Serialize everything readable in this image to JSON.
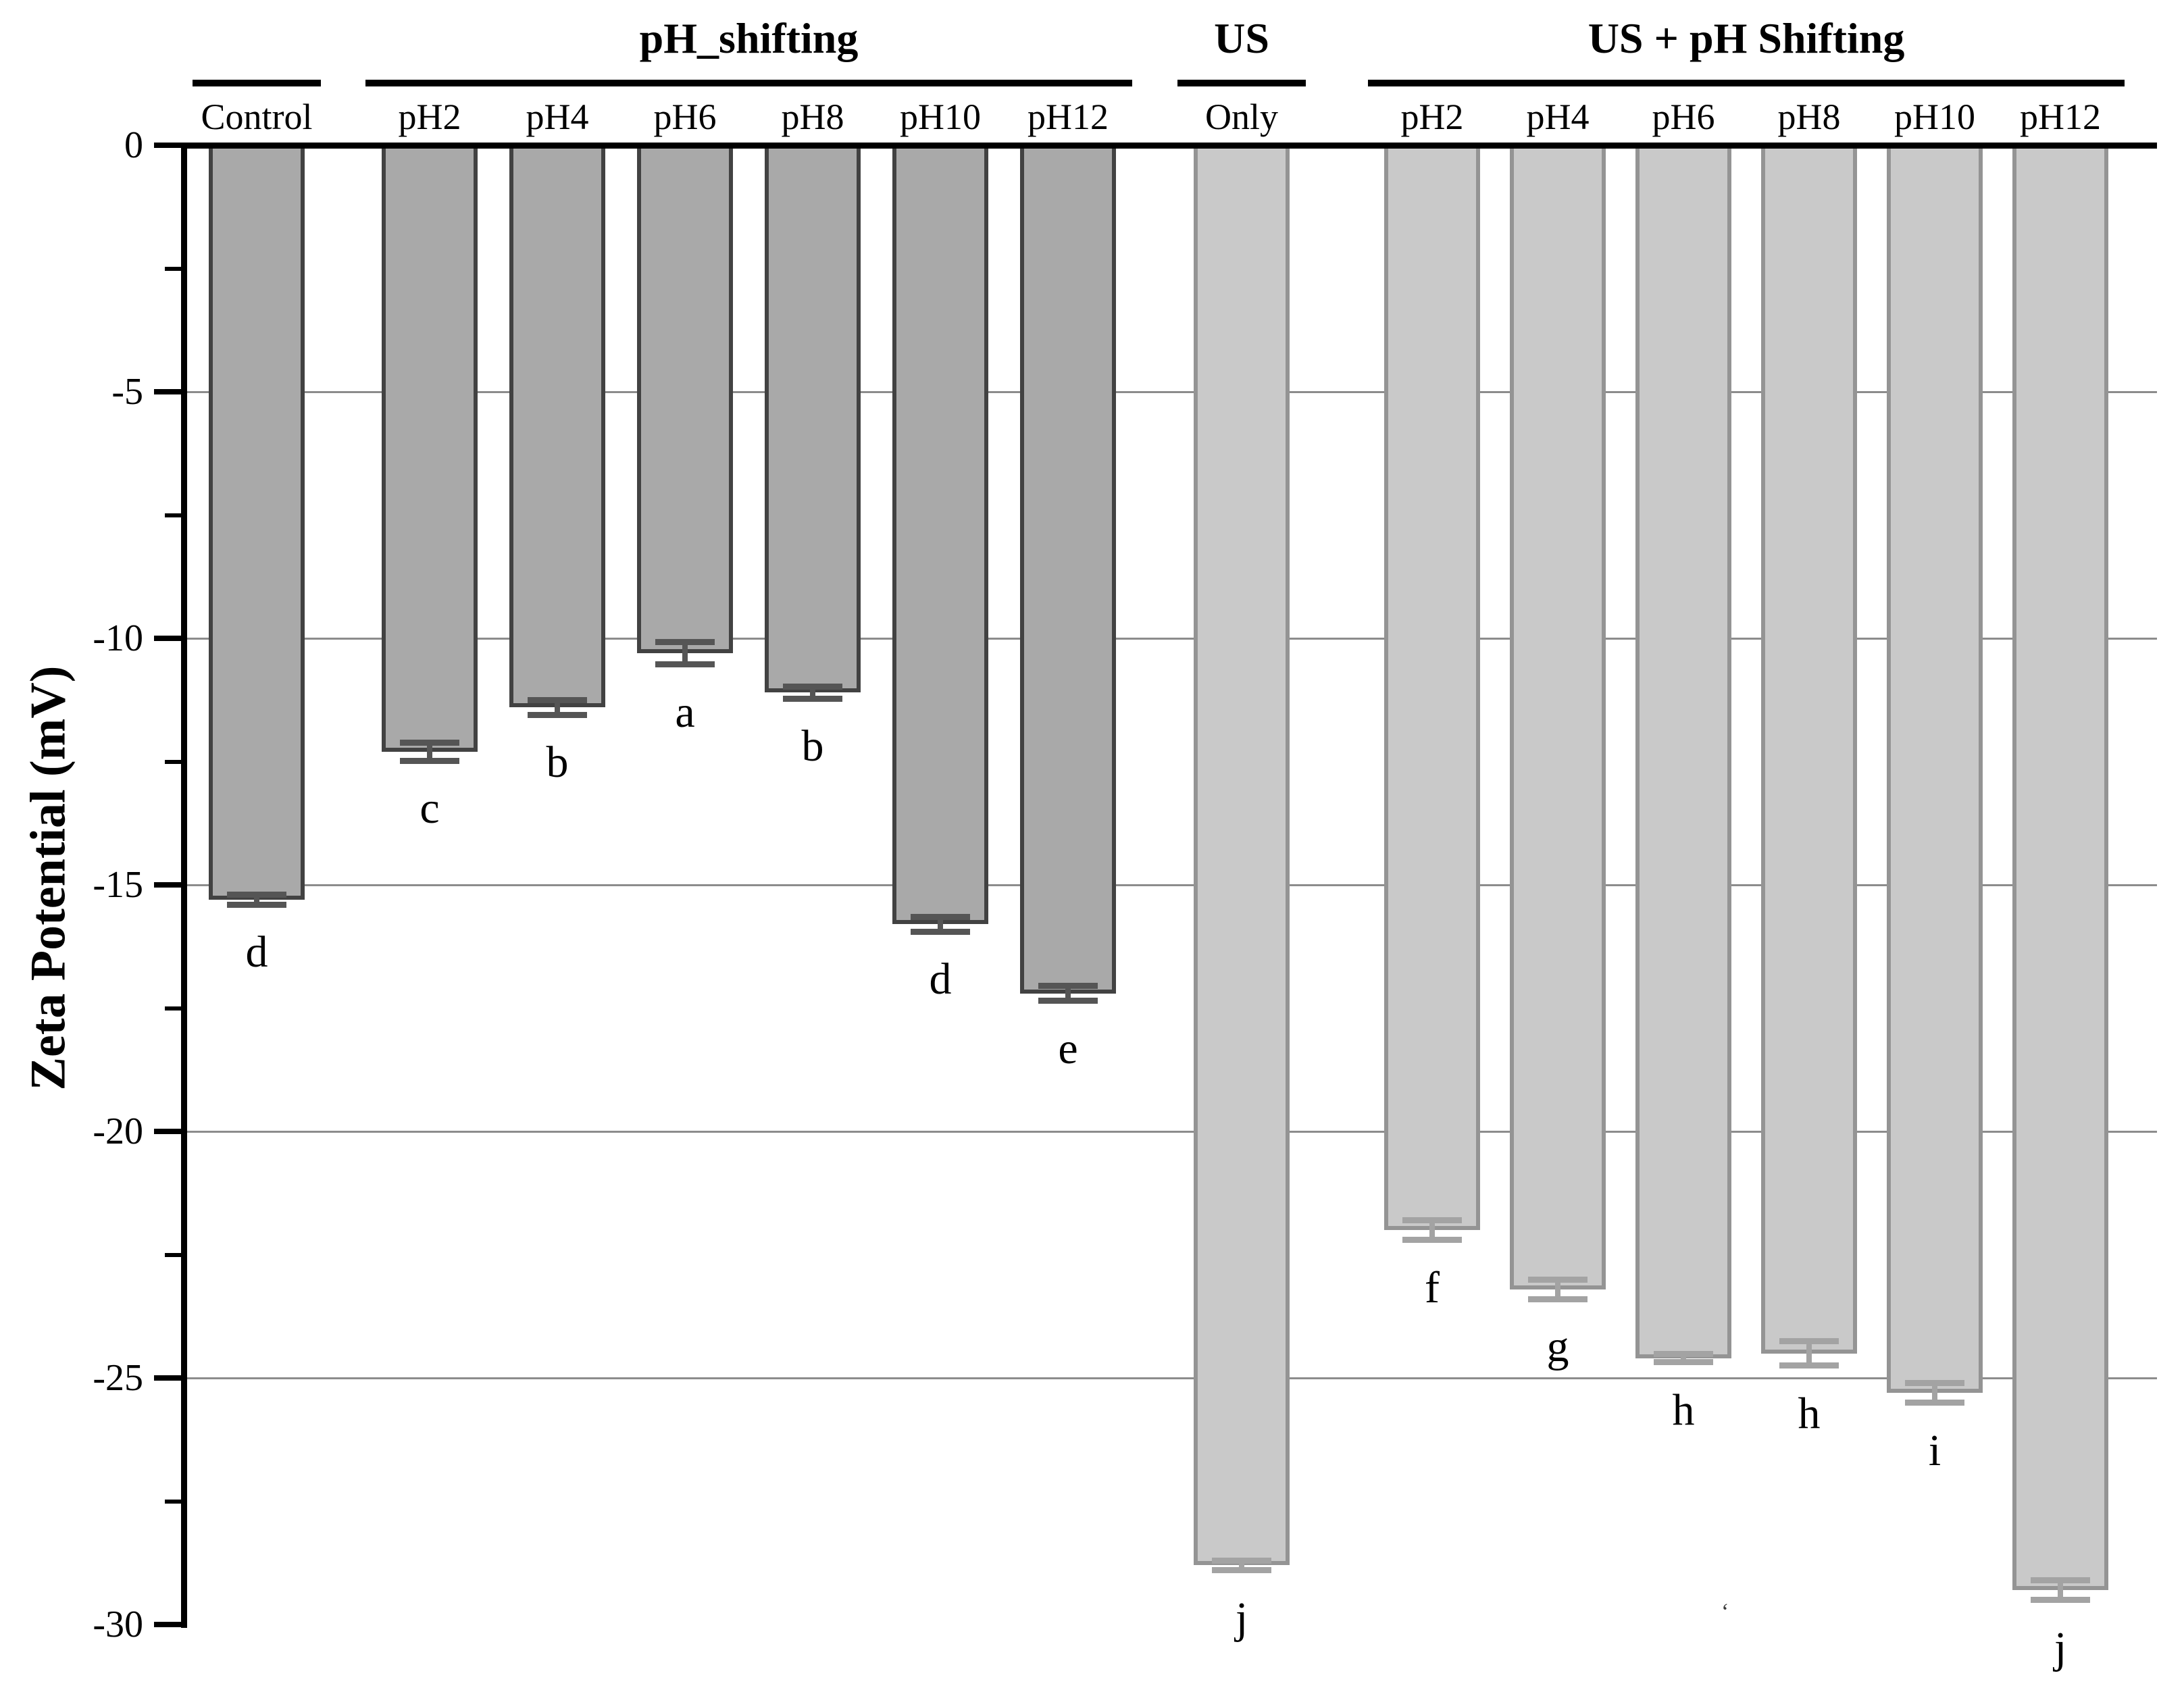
{
  "chart_data": {
    "type": "bar",
    "title": "",
    "ylabel": "Zeta Potential (mV)",
    "xlabel": "",
    "ylim": [
      -30,
      0
    ],
    "grid": true,
    "legend": "none",
    "unit": "mV",
    "yticks": [
      {
        "value": 0,
        "label": "0"
      },
      {
        "value": -5,
        "label": "-5"
      },
      {
        "value": -10,
        "label": "-10"
      },
      {
        "value": -15,
        "label": "-15"
      },
      {
        "value": -20,
        "label": "-20"
      },
      {
        "value": -25,
        "label": "-25"
      },
      {
        "value": -30,
        "label": "-30"
      }
    ],
    "yticks_minor": [
      -2.5,
      -7.5,
      -12.5,
      -17.5,
      -22.5,
      -27.5
    ],
    "gridlines": [
      -5,
      -10,
      -15,
      -20,
      -25
    ],
    "groups": [
      {
        "header": "",
        "style": "dark",
        "columns": [
          {
            "label": "Control",
            "value": -15.3,
            "error": 0.1,
            "letter": "d"
          }
        ]
      },
      {
        "header": "pH_shifting",
        "style": "dark",
        "columns": [
          {
            "label": "pH2",
            "value": -12.3,
            "error": 0.18,
            "letter": "c"
          },
          {
            "label": "pH4",
            "value": -11.4,
            "error": 0.15,
            "letter": "b"
          },
          {
            "label": "pH6",
            "value": -10.3,
            "error": 0.23,
            "letter": "a"
          },
          {
            "label": "pH8",
            "value": -11.1,
            "error": 0.12,
            "letter": "b"
          },
          {
            "label": "pH10",
            "value": -15.8,
            "error": 0.15,
            "letter": "d"
          },
          {
            "label": "pH12",
            "value": -17.2,
            "error": 0.15,
            "letter": "e"
          }
        ]
      },
      {
        "header": "US",
        "style": "light",
        "columns": [
          {
            "label": "Only",
            "value": -28.8,
            "error": 0.1,
            "letter": "j"
          }
        ]
      },
      {
        "header": "US + pH Shifting",
        "style": "light",
        "columns": [
          {
            "label": "pH2",
            "value": -22.0,
            "error": 0.2,
            "letter": "f"
          },
          {
            "label": "pH4",
            "value": -23.2,
            "error": 0.2,
            "letter": "g"
          },
          {
            "label": "pH6",
            "value": -24.6,
            "error": 0.08,
            "letter": "h"
          },
          {
            "label": "pH8",
            "value": -24.5,
            "error": 0.25,
            "letter": "h"
          },
          {
            "label": "pH10",
            "value": -25.3,
            "error": 0.2,
            "letter": "i"
          },
          {
            "label": "pH12",
            "value": -29.3,
            "error": 0.2,
            "letter": "j"
          }
        ]
      }
    ],
    "styles": {
      "dark": {
        "fill": "#a9a9a9",
        "border": "#424242",
        "error": "#555555"
      },
      "light": {
        "fill": "#c9c9c9",
        "border": "#949494",
        "error": "#a3a3a3"
      }
    },
    "axis_color": "#000000",
    "gridline_color": "#8c8c8c",
    "stray_mark": "ʻ"
  }
}
